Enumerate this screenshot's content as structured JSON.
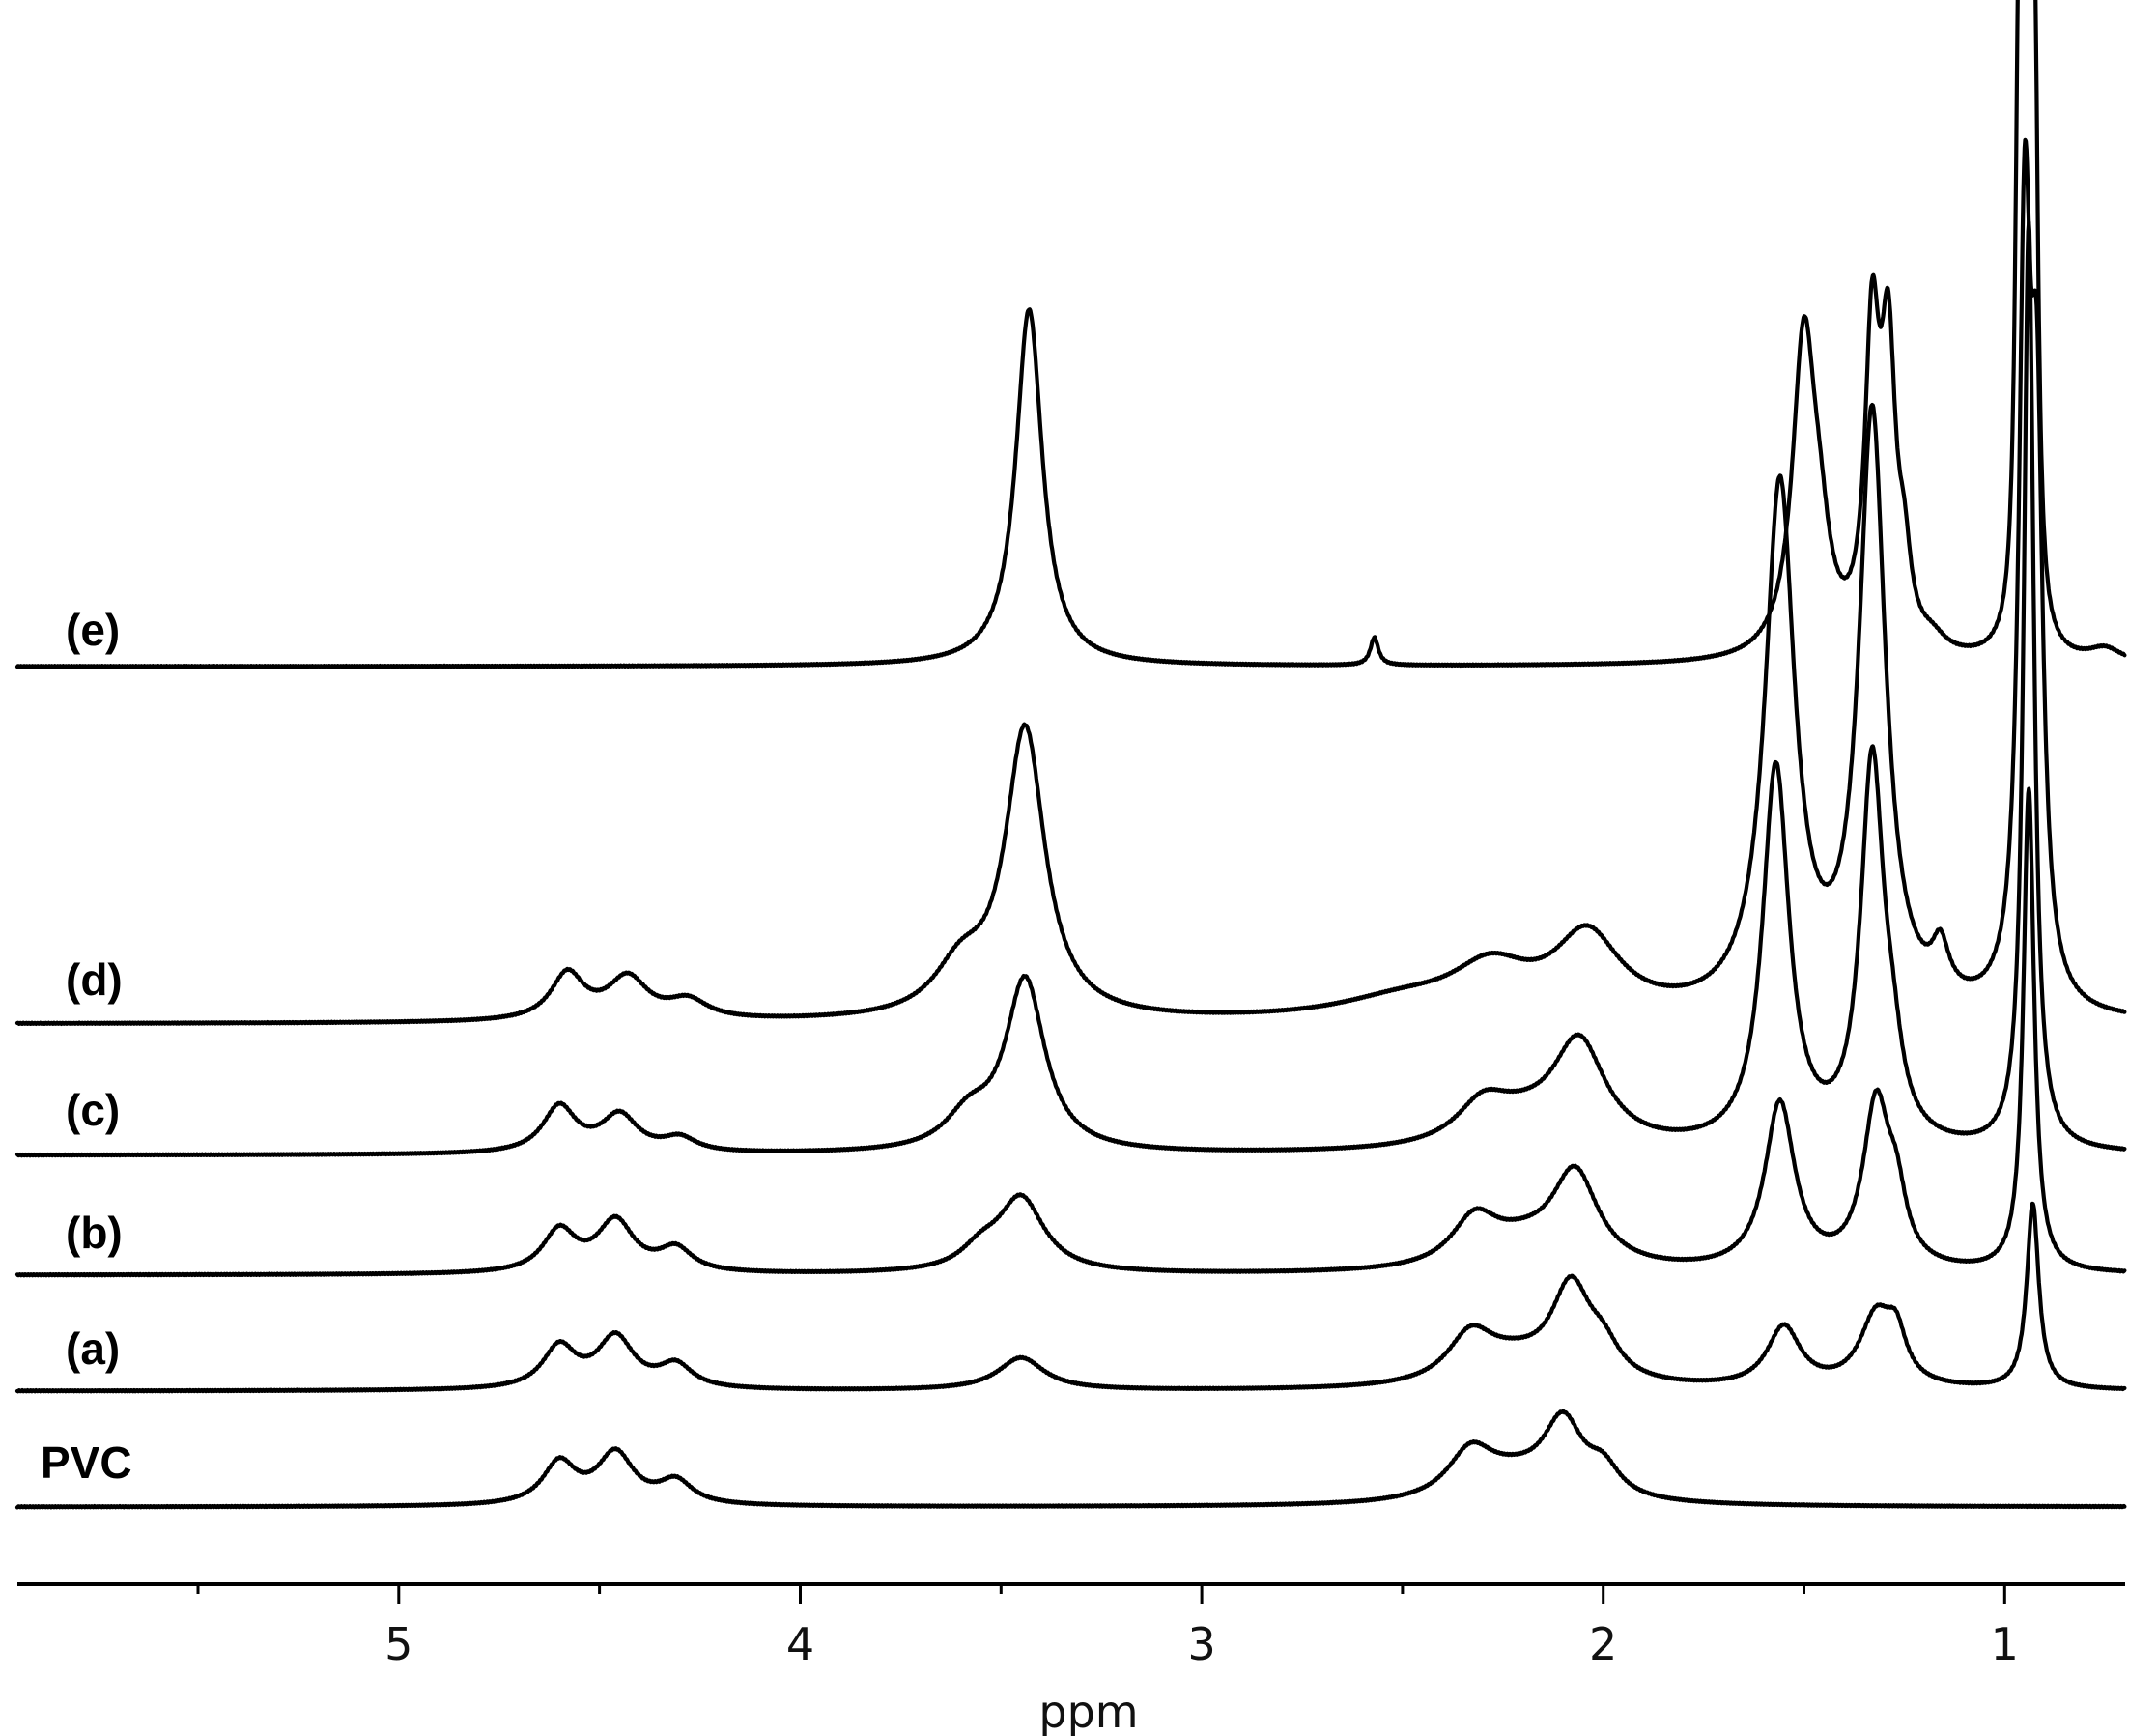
{
  "chart_data": {
    "type": "line",
    "xlabel": "ppm",
    "x_axis": {
      "xlim": [
        5.95,
        0.7
      ],
      "reversed": true,
      "ticks": [
        5,
        4,
        3,
        2,
        1
      ],
      "tick_labels": [
        "5",
        "4",
        "3",
        "2",
        "1"
      ]
    },
    "grid": false,
    "legend": "none",
    "series": [
      {
        "name": "PVC",
        "peaks": [
          {
            "ppm": 4.6,
            "height": 0.09,
            "width": 0.05
          },
          {
            "ppm": 4.46,
            "height": 0.11,
            "width": 0.055
          },
          {
            "ppm": 4.31,
            "height": 0.05,
            "width": 0.05
          },
          {
            "ppm": 2.33,
            "height": 0.1,
            "width": 0.07
          },
          {
            "ppm": 2.1,
            "height": 0.16,
            "width": 0.06
          },
          {
            "ppm": 2.0,
            "height": 0.06,
            "width": 0.05
          },
          {
            "ppm": 2.22,
            "height": 0.05,
            "width": 0.12
          }
        ]
      },
      {
        "name": "(a)",
        "peaks": [
          {
            "ppm": 4.6,
            "height": 0.09,
            "width": 0.05
          },
          {
            "ppm": 4.46,
            "height": 0.11,
            "width": 0.055
          },
          {
            "ppm": 4.31,
            "height": 0.05,
            "width": 0.05
          },
          {
            "ppm": 3.45,
            "height": 0.07,
            "width": 0.07
          },
          {
            "ppm": 2.33,
            "height": 0.1,
            "width": 0.07
          },
          {
            "ppm": 2.08,
            "height": 0.2,
            "width": 0.06
          },
          {
            "ppm": 2.0,
            "height": 0.06,
            "width": 0.05
          },
          {
            "ppm": 2.22,
            "height": 0.05,
            "width": 0.12
          },
          {
            "ppm": 1.55,
            "height": 0.13,
            "width": 0.05
          },
          {
            "ppm": 1.32,
            "height": 0.15,
            "width": 0.05
          },
          {
            "ppm": 1.27,
            "height": 0.09,
            "width": 0.03
          },
          {
            "ppm": 0.93,
            "height": 0.4,
            "width": 0.018
          }
        ]
      },
      {
        "name": "(b)",
        "peaks": [
          {
            "ppm": 4.6,
            "height": 0.09,
            "width": 0.05
          },
          {
            "ppm": 4.46,
            "height": 0.11,
            "width": 0.055
          },
          {
            "ppm": 4.31,
            "height": 0.05,
            "width": 0.05
          },
          {
            "ppm": 3.45,
            "height": 0.16,
            "width": 0.07
          },
          {
            "ppm": 3.55,
            "height": 0.04,
            "width": 0.06
          },
          {
            "ppm": 2.32,
            "height": 0.1,
            "width": 0.07
          },
          {
            "ppm": 2.07,
            "height": 0.2,
            "width": 0.07
          },
          {
            "ppm": 2.2,
            "height": 0.05,
            "width": 0.12
          },
          {
            "ppm": 1.56,
            "height": 0.36,
            "width": 0.045
          },
          {
            "ppm": 1.32,
            "height": 0.35,
            "width": 0.04
          },
          {
            "ppm": 1.27,
            "height": 0.12,
            "width": 0.03
          },
          {
            "ppm": 0.94,
            "height": 1.04,
            "width": 0.016
          }
        ]
      },
      {
        "name": "(c)",
        "peaks": [
          {
            "ppm": 4.6,
            "height": 0.1,
            "width": 0.05
          },
          {
            "ppm": 4.45,
            "height": 0.08,
            "width": 0.055
          },
          {
            "ppm": 4.3,
            "height": 0.03,
            "width": 0.05
          },
          {
            "ppm": 3.44,
            "height": 0.37,
            "width": 0.06
          },
          {
            "ppm": 3.58,
            "height": 0.07,
            "width": 0.07
          },
          {
            "ppm": 2.3,
            "height": 0.08,
            "width": 0.08
          },
          {
            "ppm": 2.06,
            "height": 0.22,
            "width": 0.08
          },
          {
            "ppm": 2.2,
            "height": 0.05,
            "width": 0.13
          },
          {
            "ppm": 1.57,
            "height": 0.82,
            "width": 0.04
          },
          {
            "ppm": 1.33,
            "height": 0.82,
            "width": 0.035
          },
          {
            "ppm": 1.28,
            "height": 0.12,
            "width": 0.03
          },
          {
            "ppm": 0.94,
            "height": 2.0,
            "width": 0.015
          }
        ]
      },
      {
        "name": "(d)",
        "peaks": [
          {
            "ppm": 4.58,
            "height": 0.1,
            "width": 0.05
          },
          {
            "ppm": 4.43,
            "height": 0.09,
            "width": 0.06
          },
          {
            "ppm": 4.28,
            "height": 0.04,
            "width": 0.06
          },
          {
            "ppm": 3.44,
            "height": 0.62,
            "width": 0.06
          },
          {
            "ppm": 3.6,
            "height": 0.1,
            "width": 0.08
          },
          {
            "ppm": 2.28,
            "height": 0.1,
            "width": 0.12
          },
          {
            "ppm": 2.04,
            "height": 0.17,
            "width": 0.1
          },
          {
            "ppm": 2.5,
            "height": 0.04,
            "width": 0.2
          },
          {
            "ppm": 1.56,
            "height": 1.13,
            "width": 0.045
          },
          {
            "ppm": 1.33,
            "height": 1.28,
            "width": 0.04
          },
          {
            "ppm": 1.16,
            "height": 0.1,
            "width": 0.025
          },
          {
            "ppm": 0.95,
            "height": 1.58,
            "width": 0.018
          },
          {
            "ppm": 0.92,
            "height": 1.1,
            "width": 0.018
          }
        ]
      },
      {
        "name": "(e)",
        "peaks": [
          {
            "ppm": 3.43,
            "height": 0.77,
            "width": 0.04
          },
          {
            "ppm": 2.57,
            "height": 0.06,
            "width": 0.012
          },
          {
            "ppm": 1.5,
            "height": 0.68,
            "width": 0.035
          },
          {
            "ppm": 1.46,
            "height": 0.15,
            "width": 0.03
          },
          {
            "ppm": 1.33,
            "height": 0.65,
            "width": 0.022
          },
          {
            "ppm": 1.29,
            "height": 0.6,
            "width": 0.022
          },
          {
            "ppm": 1.25,
            "height": 0.15,
            "width": 0.02
          },
          {
            "ppm": 1.18,
            "height": 0.03,
            "width": 0.04
          },
          {
            "ppm": 0.965,
            "height": 1.2,
            "width": 0.01
          },
          {
            "ppm": 0.945,
            "height": 2.2,
            "width": 0.008
          },
          {
            "ppm": 0.925,
            "height": 1.15,
            "width": 0.01
          },
          {
            "ppm": 0.75,
            "height": 0.03,
            "width": 0.05
          }
        ]
      }
    ]
  }
}
